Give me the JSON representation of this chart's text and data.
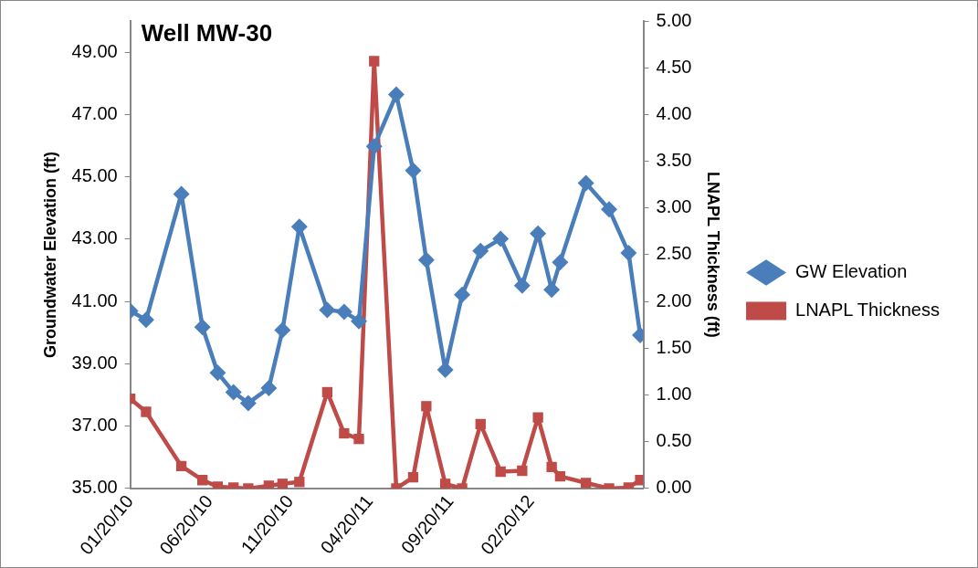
{
  "chart_data": {
    "type": "line",
    "title": "Well MW-30",
    "ylabel": "Groundwater Elevation (ft)",
    "y2label": "LNAPL Thickness (ft)",
    "x": [
      "2010-01-20",
      "2010-02-19",
      "2010-04-27",
      "2010-06-06",
      "2010-07-05",
      "2010-08-04",
      "2010-09-01",
      "2010-10-10",
      "2010-11-05",
      "2010-12-07",
      "2011-01-29",
      "2011-03-02",
      "2011-03-30",
      "2011-04-28",
      "2011-06-09",
      "2011-07-11",
      "2011-08-05",
      "2011-09-10",
      "2011-10-12",
      "2011-11-16",
      "2011-12-24",
      "2012-02-03",
      "2012-03-04",
      "2012-03-30",
      "2012-04-15",
      "2012-06-03",
      "2012-07-17",
      "2012-08-23",
      "2012-09-14"
    ],
    "series": [
      {
        "name": "GW Elevation",
        "color": "#4a7ebb",
        "marker": "diamond",
        "values": [
          40.7,
          40.41,
          44.45,
          40.18,
          38.71,
          38.09,
          37.74,
          38.22,
          40.08,
          43.4,
          40.73,
          40.67,
          40.37,
          45.98,
          47.64,
          45.2,
          42.33,
          38.81,
          41.22,
          42.62,
          43.01,
          41.51,
          43.18,
          41.38,
          42.26,
          44.8,
          43.96,
          42.56,
          39.92
        ]
      },
      {
        "name": "LNAPL Thickness",
        "color": "#be4b48",
        "marker": "square",
        "axis": "y2",
        "values": [
          0.96,
          0.82,
          0.24,
          0.09,
          0.02,
          0.01,
          0,
          0.03,
          0.05,
          0.07,
          1.03,
          0.59,
          0.53,
          4.57,
          0,
          0.12,
          0.88,
          0.05,
          0,
          0.69,
          0.18,
          0.19,
          0.76,
          0.23,
          0.13,
          0.06,
          0,
          0.01,
          0.09
        ]
      }
    ],
    "xlim": [
      "2010-01-20",
      "2012-09-20"
    ],
    "xticks": [
      {
        "value": "2010-01-20",
        "label": "01/20/10"
      },
      {
        "value": "2010-06-20",
        "label": "06/20/10"
      },
      {
        "value": "2010-11-20",
        "label": "11/20/10"
      },
      {
        "value": "2011-04-20",
        "label": "04/20/11"
      },
      {
        "value": "2011-09-20",
        "label": "09/20/11"
      },
      {
        "value": "2012-02-20",
        "label": "02/20/12"
      }
    ],
    "ylim": [
      35,
      50
    ],
    "yticks": [
      {
        "value": 35,
        "label": "35.00"
      },
      {
        "value": 37,
        "label": "37.00"
      },
      {
        "value": 39,
        "label": "39.00"
      },
      {
        "value": 41,
        "label": "41.00"
      },
      {
        "value": 43,
        "label": "43.00"
      },
      {
        "value": 45,
        "label": "45.00"
      },
      {
        "value": 47,
        "label": "47.00"
      },
      {
        "value": 49,
        "label": "49.00"
      }
    ],
    "y2lim": [
      0,
      5
    ],
    "y2ticks": [
      {
        "value": 0,
        "label": "0.00"
      },
      {
        "value": 0.5,
        "label": "0.50"
      },
      {
        "value": 1,
        "label": "1.00"
      },
      {
        "value": 1.5,
        "label": "1.50"
      },
      {
        "value": 2,
        "label": "2.00"
      },
      {
        "value": 2.5,
        "label": "2.50"
      },
      {
        "value": 3,
        "label": "3.00"
      },
      {
        "value": 3.5,
        "label": "3.50"
      },
      {
        "value": 4,
        "label": "4.00"
      },
      {
        "value": 4.5,
        "label": "4.50"
      },
      {
        "value": 5,
        "label": "5.00"
      }
    ],
    "grid": false,
    "legend": "right"
  }
}
